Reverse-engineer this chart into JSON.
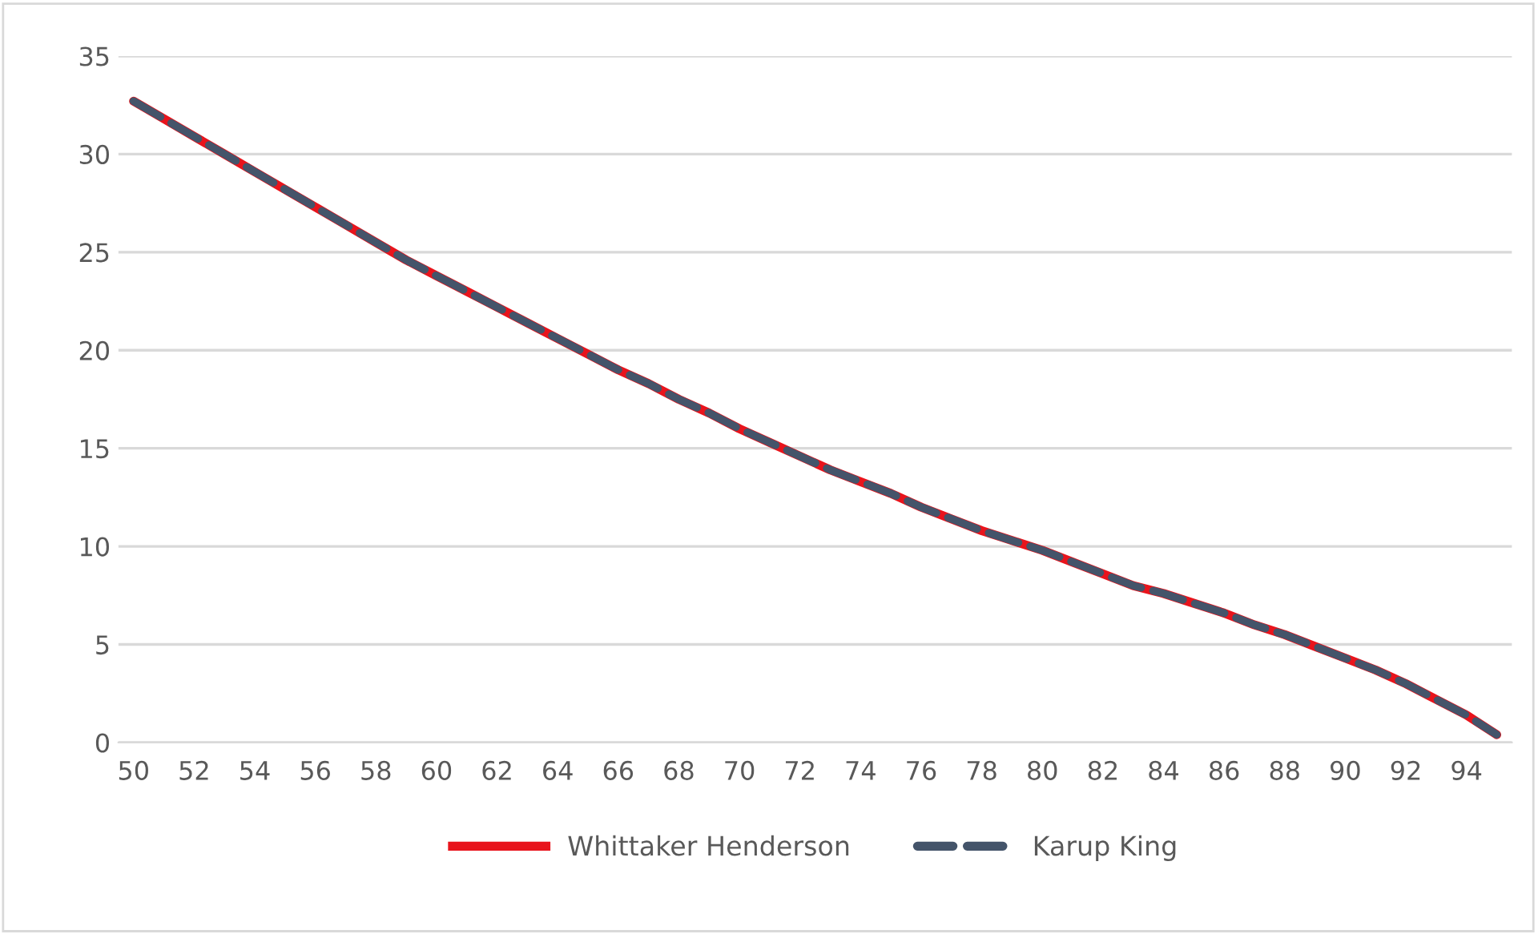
{
  "chart_data": {
    "type": "line",
    "categories": [
      "50",
      null,
      "52",
      null,
      "54",
      null,
      "56",
      null,
      "58",
      null,
      "60",
      null,
      "62",
      null,
      "64",
      null,
      "66",
      null,
      "68",
      null,
      "70",
      null,
      "72",
      null,
      "74",
      null,
      "76",
      null,
      "78",
      null,
      "80",
      null,
      "82",
      null,
      "84",
      null,
      "86",
      null,
      "88",
      null,
      "90",
      null,
      "92",
      null,
      "94",
      null
    ],
    "series": [
      {
        "name": "Whittaker Henderson",
        "color": "#e8141c",
        "line_style": "solid",
        "values": [
          32.7,
          31.8,
          30.9,
          30.0,
          29.1,
          28.2,
          27.3,
          26.4,
          25.5,
          24.6,
          23.8,
          23.0,
          22.2,
          21.4,
          20.6,
          19.8,
          19.0,
          18.3,
          17.5,
          16.8,
          16.0,
          15.3,
          14.6,
          13.9,
          13.3,
          12.7,
          12.0,
          11.4,
          10.8,
          10.3,
          9.8,
          9.2,
          8.6,
          8.0,
          7.6,
          7.1,
          6.6,
          6.0,
          5.5,
          4.9,
          4.3,
          3.7,
          3.0,
          2.2,
          1.4,
          0.4
        ]
      },
      {
        "name": "Karup King",
        "color": "#44546a",
        "line_style": "dashed",
        "values": [
          32.7,
          31.8,
          30.9,
          30.0,
          29.1,
          28.2,
          27.3,
          26.4,
          25.5,
          24.6,
          23.8,
          23.0,
          22.2,
          21.4,
          20.6,
          19.8,
          19.0,
          18.3,
          17.5,
          16.8,
          16.0,
          15.3,
          14.6,
          13.9,
          13.3,
          12.7,
          12.0,
          11.4,
          10.8,
          10.3,
          9.8,
          9.2,
          8.6,
          8.0,
          7.6,
          7.1,
          6.6,
          6.0,
          5.5,
          4.9,
          4.3,
          3.7,
          3.0,
          2.2,
          1.4,
          0.4
        ]
      }
    ],
    "ylim": [
      0,
      35
    ],
    "yticks": [
      0,
      5,
      10,
      15,
      20,
      25,
      30,
      35
    ],
    "grid": "y",
    "legend": "bottom",
    "marker": "none"
  }
}
